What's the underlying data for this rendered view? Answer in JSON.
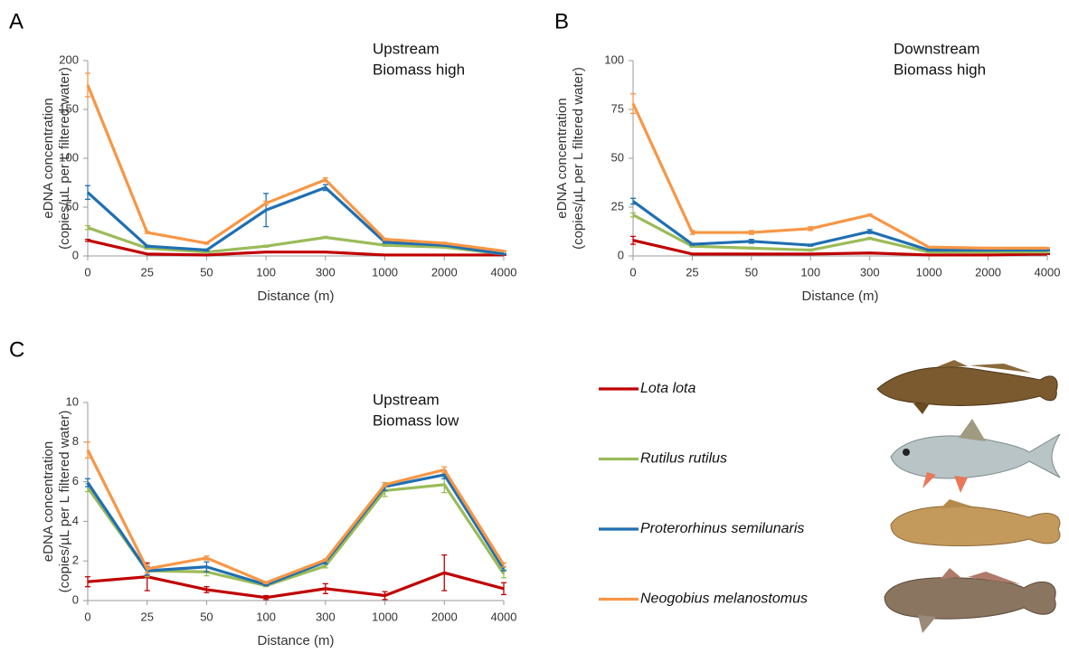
{
  "chart_data": [
    {
      "type": "line",
      "panel_label": "A",
      "annotation": [
        "Upstream",
        "Biomass high"
      ],
      "ylabel": [
        "eDNA concentration",
        "(copies/µL per L filtered water)"
      ],
      "xlabel": "Distance (m)",
      "categories": [
        "0",
        "25",
        "50",
        "100",
        "300",
        "1000",
        "2000",
        "4000"
      ],
      "ylim": [
        0,
        200
      ],
      "yticks": [
        0,
        50,
        100,
        150,
        200
      ],
      "series": [
        {
          "name": "Lota lota",
          "color": "#c00000",
          "values": [
            16,
            2,
            1,
            4,
            4,
            1,
            1,
            1
          ],
          "errors": [
            1,
            0.5,
            0.5,
            0.5,
            0.5,
            0.3,
            0.3,
            0.3
          ]
        },
        {
          "name": "Rutilus rutilus",
          "color": "#9bbb59",
          "values": [
            29,
            8,
            4,
            10,
            19,
            11,
            9,
            2
          ],
          "errors": [
            2,
            1,
            0.5,
            1,
            1,
            1,
            1,
            0.5
          ]
        },
        {
          "name": "Proterorhinus semilunaris",
          "color": "#1f6fb2",
          "values": [
            65,
            10,
            6,
            47,
            70,
            14,
            11,
            2
          ],
          "errors": [
            7,
            1,
            1,
            17,
            3,
            1,
            1,
            0.5
          ]
        },
        {
          "name": "Neogobius melanostomus",
          "color": "#f79646",
          "values": [
            175,
            24,
            13,
            54,
            78,
            17,
            13,
            5
          ],
          "errors": [
            12,
            1,
            1,
            2,
            2,
            1,
            1,
            0.5
          ]
        }
      ]
    },
    {
      "type": "line",
      "panel_label": "B",
      "annotation": [
        "Downstream",
        "Biomass high"
      ],
      "ylabel": [
        "eDNA concentration",
        "(copies/µL per L filtered water)"
      ],
      "xlabel": "Distance (m)",
      "categories": [
        "0",
        "25",
        "50",
        "100",
        "300",
        "1000",
        "2000",
        "4000"
      ],
      "ylim": [
        0,
        100
      ],
      "yticks": [
        0,
        25,
        50,
        75,
        100
      ],
      "series": [
        {
          "name": "Lota lota",
          "color": "#c00000",
          "values": [
            8,
            1,
            1,
            1,
            1.5,
            0.5,
            0.5,
            1
          ],
          "errors": [
            2,
            0.3,
            0.3,
            0.3,
            0.3,
            0.2,
            0.2,
            0.2
          ]
        },
        {
          "name": "Rutilus rutilus",
          "color": "#9bbb59",
          "values": [
            21,
            5,
            4,
            3,
            9,
            2,
            2,
            2
          ],
          "errors": [
            1,
            0.5,
            0.5,
            0.5,
            0.5,
            0.3,
            0.3,
            0.3
          ]
        },
        {
          "name": "Proterorhinus semilunaris",
          "color": "#1f6fb2",
          "values": [
            28,
            6,
            7.5,
            5.5,
            12.5,
            3,
            3,
            3
          ],
          "errors": [
            1.5,
            0.5,
            1,
            0.5,
            1,
            0.3,
            0.3,
            0.3
          ]
        },
        {
          "name": "Neogobius melanostomus",
          "color": "#f79646",
          "values": [
            78,
            12,
            12,
            14,
            21,
            4.5,
            4,
            4
          ],
          "errors": [
            5,
            1,
            1,
            1,
            0.5,
            0.3,
            0.3,
            0.3
          ]
        }
      ]
    },
    {
      "type": "line",
      "panel_label": "C",
      "annotation": [
        "Upstream",
        "Biomass low"
      ],
      "ylabel": [
        "eDNA concentration",
        "(copies/µL per L filtered water)"
      ],
      "xlabel": "Distance (m)",
      "categories": [
        "0",
        "25",
        "50",
        "100",
        "300",
        "1000",
        "2000",
        "4000"
      ],
      "ylim": [
        0,
        10
      ],
      "yticks": [
        0,
        2,
        4,
        6,
        8,
        10
      ],
      "series": [
        {
          "name": "Lota lota",
          "color": "#c00000",
          "values": [
            0.95,
            1.2,
            0.55,
            0.15,
            0.6,
            0.25,
            1.4,
            0.6
          ],
          "errors": [
            0.25,
            0.7,
            0.15,
            0.1,
            0.25,
            0.2,
            0.9,
            0.3
          ]
        },
        {
          "name": "Rutilus rutilus",
          "color": "#9bbb59",
          "values": [
            5.7,
            1.5,
            1.45,
            0.75,
            1.75,
            5.55,
            5.85,
            1.35
          ],
          "errors": [
            0.2,
            0.3,
            0.2,
            0.05,
            0.1,
            0.3,
            0.4,
            0.2
          ]
        },
        {
          "name": "Proterorhinus semilunaris",
          "color": "#1f6fb2",
          "values": [
            5.95,
            1.5,
            1.7,
            0.8,
            1.95,
            5.75,
            6.35,
            1.6
          ],
          "errors": [
            0.2,
            0.2,
            0.25,
            0.05,
            0.1,
            0.2,
            0.2,
            0.1
          ]
        },
        {
          "name": "Neogobius melanostomus",
          "color": "#f79646",
          "values": [
            7.6,
            1.6,
            2.15,
            0.9,
            2.05,
            5.85,
            6.6,
            1.8
          ],
          "errors": [
            0.4,
            0.2,
            0.1,
            0.05,
            0.05,
            0.1,
            0.15,
            0.1
          ]
        }
      ]
    }
  ]
}
